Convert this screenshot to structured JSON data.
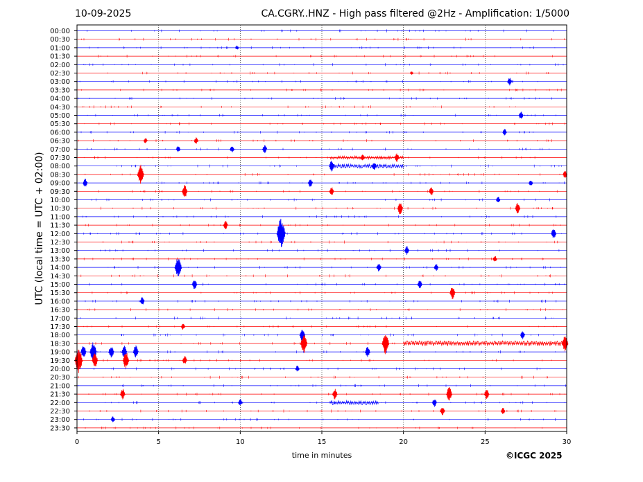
{
  "header": {
    "date": "10-09-2025",
    "title": "CA.CGRY..HNZ - High pass filtered @2Hz - Amplification: 1/5000"
  },
  "copyright": "©ICGC 2025",
  "colors": {
    "odd_trace": "#ff0000",
    "even_trace": "#0000ff",
    "grid": "#000000"
  },
  "chart_data": {
    "type": "line",
    "title": "CA.CGRY..HNZ - High pass filtered @2Hz - Amplification: 1/5000",
    "xlabel": "time in minutes",
    "ylabel": "UTC (local time = UTC + 02:00)",
    "xlim": [
      0,
      30
    ],
    "x_ticks": [
      0,
      5,
      10,
      15,
      20,
      25,
      30
    ],
    "grid": "vertical dotted at x ticks",
    "rows": [
      "00:00",
      "00:30",
      "01:00",
      "01:30",
      "02:00",
      "02:30",
      "03:00",
      "03:30",
      "04:00",
      "04:30",
      "05:00",
      "05:30",
      "06:00",
      "06:30",
      "07:00",
      "07:30",
      "08:00",
      "08:30",
      "09:00",
      "09:30",
      "10:00",
      "10:30",
      "11:00",
      "11:30",
      "12:00",
      "12:30",
      "13:00",
      "13:30",
      "14:00",
      "14:30",
      "15:00",
      "15:30",
      "16:00",
      "16:30",
      "17:00",
      "17:30",
      "18:00",
      "18:30",
      "19:00",
      "19:30",
      "20:00",
      "20:30",
      "21:00",
      "21:30",
      "22:00",
      "22:30",
      "23:00",
      "23:30"
    ],
    "row_colors": "alternating red, blue starting with blue at 00:00",
    "events": [
      {
        "row": "01:00",
        "minute": 9.8,
        "amplitude": 0.2
      },
      {
        "row": "02:30",
        "minute": 20.5,
        "amplitude": 0.15
      },
      {
        "row": "03:00",
        "minute": 26.5,
        "amplitude": 0.4
      },
      {
        "row": "05:00",
        "minute": 27.2,
        "amplitude": 0.4
      },
      {
        "row": "06:00",
        "minute": 26.2,
        "amplitude": 0.3
      },
      {
        "row": "06:30",
        "minute": 4.2,
        "amplitude": 0.25
      },
      {
        "row": "06:30",
        "minute": 7.3,
        "amplitude": 0.3
      },
      {
        "row": "07:00",
        "minute": 6.2,
        "amplitude": 0.3
      },
      {
        "row": "07:00",
        "minute": 9.5,
        "amplitude": 0.35
      },
      {
        "row": "07:00",
        "minute": 11.5,
        "amplitude": 0.4
      },
      {
        "row": "07:30",
        "minute": 17.5,
        "amplitude": 0.3
      },
      {
        "row": "07:30",
        "minute": 19.6,
        "amplitude": 0.4
      },
      {
        "row": "08:00",
        "minute": 15.6,
        "amplitude": 0.5
      },
      {
        "row": "08:00",
        "minute": 18.2,
        "amplitude": 0.4
      },
      {
        "row": "08:30",
        "minute": 3.9,
        "amplitude": 0.9
      },
      {
        "row": "08:30",
        "minute": 29.9,
        "amplitude": 0.35
      },
      {
        "row": "09:00",
        "minute": 0.5,
        "amplitude": 0.4
      },
      {
        "row": "09:00",
        "minute": 14.3,
        "amplitude": 0.4
      },
      {
        "row": "09:00",
        "minute": 27.8,
        "amplitude": 0.3
      },
      {
        "row": "09:30",
        "minute": 6.6,
        "amplitude": 0.6
      },
      {
        "row": "09:30",
        "minute": 15.6,
        "amplitude": 0.4
      },
      {
        "row": "09:30",
        "minute": 21.7,
        "amplitude": 0.4
      },
      {
        "row": "10:00",
        "minute": 25.8,
        "amplitude": 0.3
      },
      {
        "row": "10:30",
        "minute": 19.8,
        "amplitude": 0.6
      },
      {
        "row": "10:30",
        "minute": 27.0,
        "amplitude": 0.5
      },
      {
        "row": "11:30",
        "minute": 9.1,
        "amplitude": 0.4
      },
      {
        "row": "12:00",
        "minute": 12.5,
        "amplitude": 1.4
      },
      {
        "row": "12:00",
        "minute": 29.2,
        "amplitude": 0.5
      },
      {
        "row": "13:00",
        "minute": 20.2,
        "amplitude": 0.4
      },
      {
        "row": "13:30",
        "minute": 25.6,
        "amplitude": 0.3
      },
      {
        "row": "14:00",
        "minute": 6.2,
        "amplitude": 1.0
      },
      {
        "row": "14:00",
        "minute": 18.5,
        "amplitude": 0.4
      },
      {
        "row": "14:00",
        "minute": 22.0,
        "amplitude": 0.35
      },
      {
        "row": "15:00",
        "minute": 7.2,
        "amplitude": 0.5
      },
      {
        "row": "15:00",
        "minute": 21.0,
        "amplitude": 0.4
      },
      {
        "row": "15:30",
        "minute": 23.0,
        "amplitude": 0.6
      },
      {
        "row": "16:00",
        "minute": 4.0,
        "amplitude": 0.4
      },
      {
        "row": "17:30",
        "minute": 6.5,
        "amplitude": 0.3
      },
      {
        "row": "18:00",
        "minute": 13.8,
        "amplitude": 0.6
      },
      {
        "row": "18:00",
        "minute": 27.3,
        "amplitude": 0.4
      },
      {
        "row": "18:30",
        "minute": 13.9,
        "amplitude": 0.9
      },
      {
        "row": "18:30",
        "minute": 18.9,
        "amplitude": 1.0
      },
      {
        "row": "18:30",
        "minute": 29.9,
        "amplitude": 0.8
      },
      {
        "row": "19:00",
        "minute": 0.4,
        "amplitude": 0.6
      },
      {
        "row": "19:00",
        "minute": 1.0,
        "amplitude": 0.9
      },
      {
        "row": "19:00",
        "minute": 2.1,
        "amplitude": 0.6
      },
      {
        "row": "19:00",
        "minute": 2.9,
        "amplitude": 0.6
      },
      {
        "row": "19:00",
        "minute": 3.6,
        "amplitude": 0.6
      },
      {
        "row": "19:00",
        "minute": 17.8,
        "amplitude": 0.5
      },
      {
        "row": "19:30",
        "minute": 0.1,
        "amplitude": 1.2
      },
      {
        "row": "19:30",
        "minute": 1.1,
        "amplitude": 0.7
      },
      {
        "row": "19:30",
        "minute": 3.0,
        "amplitude": 0.8
      },
      {
        "row": "19:30",
        "minute": 6.6,
        "amplitude": 0.4
      },
      {
        "row": "20:00",
        "minute": 13.5,
        "amplitude": 0.3
      },
      {
        "row": "21:30",
        "minute": 2.8,
        "amplitude": 0.5
      },
      {
        "row": "21:30",
        "minute": 15.8,
        "amplitude": 0.5
      },
      {
        "row": "21:30",
        "minute": 22.8,
        "amplitude": 0.7
      },
      {
        "row": "21:30",
        "minute": 25.1,
        "amplitude": 0.5
      },
      {
        "row": "22:00",
        "minute": 10.0,
        "amplitude": 0.3
      },
      {
        "row": "22:00",
        "minute": 21.9,
        "amplitude": 0.4
      },
      {
        "row": "22:30",
        "minute": 22.4,
        "amplitude": 0.4
      },
      {
        "row": "22:30",
        "minute": 26.1,
        "amplitude": 0.3
      },
      {
        "row": "23:00",
        "minute": 2.2,
        "amplitude": 0.3
      }
    ],
    "continuous_segments": [
      {
        "row": "22:00",
        "from_minute": 15.5,
        "to_minute": 18.5,
        "amplitude": 0.25
      },
      {
        "row": "18:30",
        "from_minute": 20.0,
        "to_minute": 30.0,
        "amplitude": 0.3
      },
      {
        "row": "07:30",
        "from_minute": 15.5,
        "to_minute": 20.0,
        "amplitude": 0.2
      },
      {
        "row": "08:00",
        "from_minute": 15.5,
        "to_minute": 20.0,
        "amplitude": 0.25
      }
    ]
  }
}
